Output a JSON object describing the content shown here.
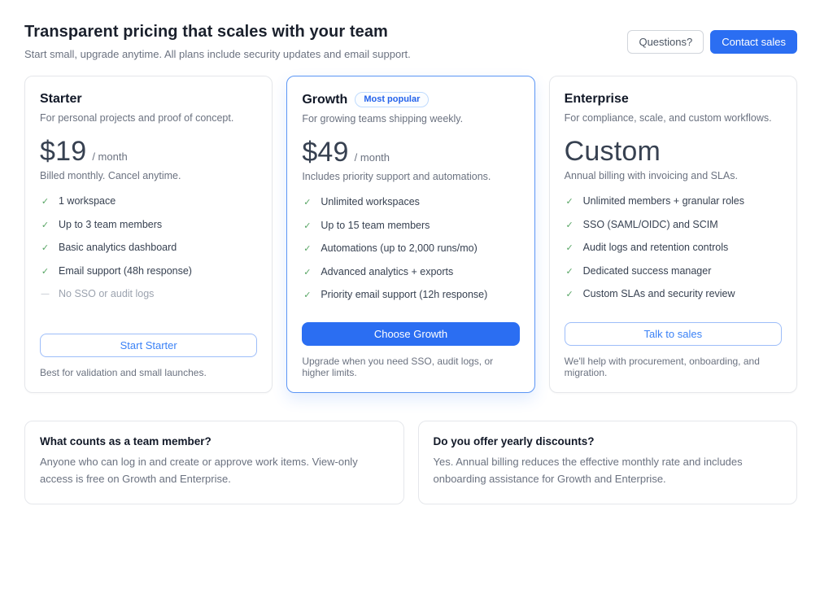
{
  "header": {
    "title": "Transparent pricing that scales with your team",
    "subtitle": "Start small, upgrade anytime. All plans include security updates and email support.",
    "questions_label": "Questions?",
    "contact_label": "Contact sales"
  },
  "icons": {
    "check": "✓",
    "dash": "—"
  },
  "colors": {
    "accent_blue": "#2b6ef2",
    "growth_border_blue": "#5b96f5",
    "badge_text_blue": "#2563eb",
    "check_green": "#57a564",
    "muted_text": "#6b7280"
  },
  "plans": [
    {
      "name": "Starter",
      "description": "For personal projects and proof of concept.",
      "price": "$19",
      "price_suffix": "/ month",
      "price_note": "Billed monthly. Cancel anytime.",
      "features": [
        {
          "text": "1 workspace",
          "included": true
        },
        {
          "text": "Up to 3 team members",
          "included": true
        },
        {
          "text": "Basic analytics dashboard",
          "included": true
        },
        {
          "text": "Email support (48h response)",
          "included": true
        },
        {
          "text": "No SSO or audit logs",
          "included": false
        }
      ],
      "cta": "Start Starter",
      "footnote": "Best for validation and small launches."
    },
    {
      "name": "Growth",
      "badge": "Most popular",
      "description": "For growing teams shipping weekly.",
      "price": "$49",
      "price_suffix": "/ month",
      "price_note": "Includes priority support and automations.",
      "features": [
        {
          "text": "Unlimited workspaces",
          "included": true
        },
        {
          "text": "Up to 15 team members",
          "included": true
        },
        {
          "text": "Automations (up to 2,000 runs/mo)",
          "included": true
        },
        {
          "text": "Advanced analytics + exports",
          "included": true
        },
        {
          "text": "Priority email support (12h response)",
          "included": true
        }
      ],
      "cta": "Choose Growth",
      "footnote": "Upgrade when you need SSO, audit logs, or higher limits."
    },
    {
      "name": "Enterprise",
      "description": "For compliance, scale, and custom workflows.",
      "price": "Custom",
      "price_suffix": "",
      "price_note": "Annual billing with invoicing and SLAs.",
      "features": [
        {
          "text": "Unlimited members + granular roles",
          "included": true
        },
        {
          "text": "SSO (SAML/OIDC) and SCIM",
          "included": true
        },
        {
          "text": "Audit logs and retention controls",
          "included": true
        },
        {
          "text": "Dedicated success manager",
          "included": true
        },
        {
          "text": "Custom SLAs and security review",
          "included": true
        }
      ],
      "cta": "Talk to sales",
      "footnote": "We'll help with procurement, onboarding, and migration."
    }
  ],
  "faqs": [
    {
      "question": "What counts as a team member?",
      "answer": "Anyone who can log in and create or approve work items. View-only access is free on Growth and Enterprise."
    },
    {
      "question": "Do you offer yearly discounts?",
      "answer": "Yes. Annual billing reduces the effective monthly rate and includes onboarding assistance for Growth and Enterprise."
    }
  ]
}
